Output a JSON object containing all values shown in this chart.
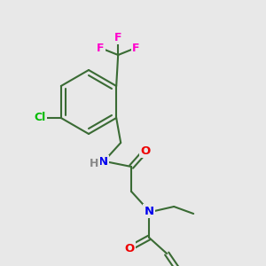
{
  "bg_color": "#e8e8e8",
  "bond_color": "#3a6b34",
  "bond_width": 1.5,
  "atom_colors": {
    "F": "#ff00cc",
    "Cl": "#00bb00",
    "N": "#0000ee",
    "O": "#ee0000",
    "H": "#888888",
    "C": "#3a6b34"
  },
  "font_size_atom": 9.5,
  "font_size_nh": 9.5,
  "font_size_cl": 9.0
}
